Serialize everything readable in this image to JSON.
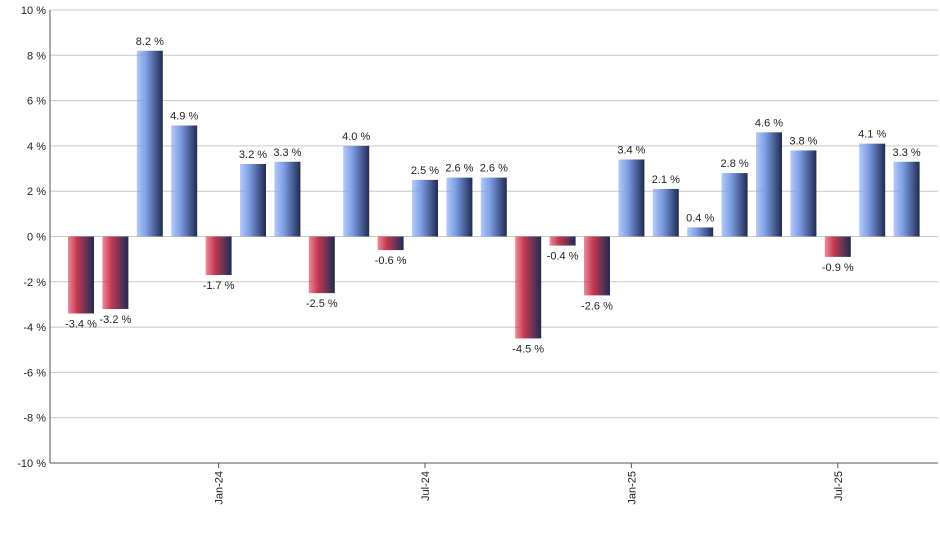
{
  "chart_data": {
    "type": "bar",
    "categories": [
      null,
      null,
      null,
      null,
      "Jan-24",
      null,
      null,
      null,
      null,
      null,
      "Jul-24",
      null,
      null,
      null,
      null,
      null,
      "Jan-25",
      null,
      null,
      null,
      null,
      null,
      "Jul-25",
      null,
      null
    ],
    "values": [
      -3.4,
      -3.2,
      8.2,
      4.9,
      -1.7,
      3.2,
      3.3,
      -2.5,
      4.0,
      -0.6,
      2.5,
      2.6,
      2.6,
      -4.5,
      -0.4,
      -2.6,
      3.4,
      2.1,
      0.4,
      2.8,
      4.6,
      3.8,
      -0.9,
      4.1,
      3.3
    ],
    "value_labels": [
      "-3.4 %",
      "-3.2 %",
      "8.2 %",
      "4.9 %",
      "-1.7 %",
      "3.2 %",
      "3.3 %",
      "-2.5 %",
      "4.0 %",
      "-0.6 %",
      "2.5 %",
      "2.6 %",
      "2.6 %",
      "-4.5 %",
      "-0.4 %",
      "-2.6 %",
      "3.4 %",
      "2.1 %",
      "0.4 %",
      "2.8 %",
      "4.6 %",
      "3.8 %",
      "-0.9 %",
      "4.1 %",
      "3.3 %"
    ],
    "positive_color": "#7d9fe6",
    "negative_color": "#c8374f",
    "ylim": [
      -10,
      10
    ],
    "yticks": [
      {
        "value": -10,
        "label": "-10 %"
      },
      {
        "value": -8,
        "label": "-8 %"
      },
      {
        "value": -6,
        "label": "-6 %"
      },
      {
        "value": -4,
        "label": "-4 %"
      },
      {
        "value": -2,
        "label": "-2 %"
      },
      {
        "value": 0,
        "label": "0 %"
      },
      {
        "value": 2,
        "label": "2 %"
      },
      {
        "value": 4,
        "label": "4 %"
      },
      {
        "value": 6,
        "label": "6 %"
      },
      {
        "value": 8,
        "label": "8 %"
      },
      {
        "value": 10,
        "label": "10 %"
      }
    ],
    "grid": true
  }
}
